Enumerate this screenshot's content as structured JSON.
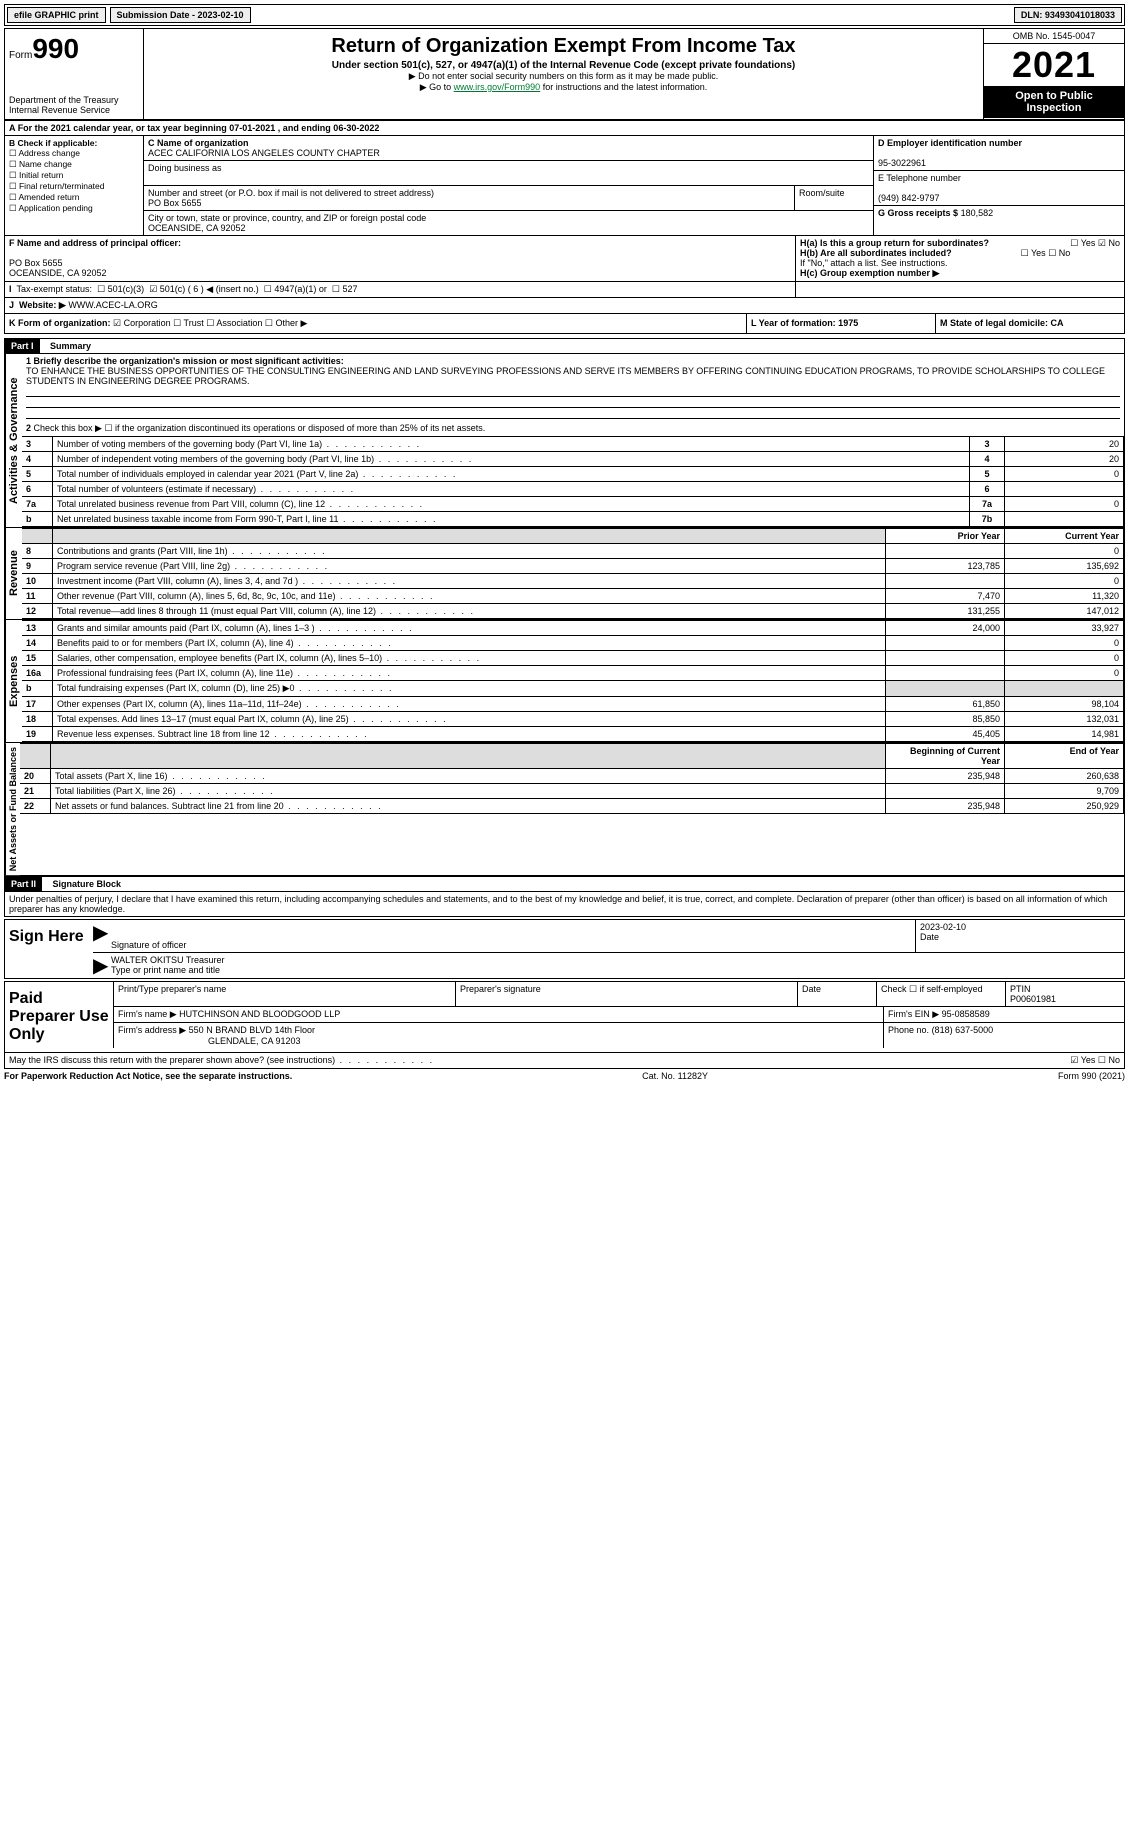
{
  "topbar": {
    "efile": "efile GRAPHIC print",
    "submission_label": "Submission Date - 2023-02-10",
    "dln": "DLN: 93493041018033"
  },
  "header": {
    "form_word": "Form",
    "form_number": "990",
    "title": "Return of Organization Exempt From Income Tax",
    "subtitle": "Under section 501(c), 527, or 4947(a)(1) of the Internal Revenue Code (except private foundations)",
    "warn": "▶ Do not enter social security numbers on this form as it may be made public.",
    "goto_prefix": "▶ Go to ",
    "goto_link": "www.irs.gov/Form990",
    "goto_suffix": " for instructions and the latest information.",
    "dept": "Department of the Treasury",
    "irs": "Internal Revenue Service",
    "omb": "OMB No. 1545-0047",
    "year": "2021",
    "open": "Open to Public Inspection"
  },
  "A": {
    "line": "For the 2021 calendar year, or tax year beginning 07-01-2021   , and ending 06-30-2022"
  },
  "B": {
    "header": "B Check if applicable:",
    "items": [
      "Address change",
      "Name change",
      "Initial return",
      "Final return/terminated",
      "Amended return",
      "Application pending"
    ]
  },
  "C": {
    "name_label": "C Name of organization",
    "name": "ACEC CALIFORNIA LOS ANGELES COUNTY CHAPTER",
    "dba_label": "Doing business as",
    "street_label": "Number and street (or P.O. box if mail is not delivered to street address)",
    "room_label": "Room/suite",
    "street": "PO Box 5655",
    "city_label": "City or town, state or province, country, and ZIP or foreign postal code",
    "city": "OCEANSIDE, CA  92052"
  },
  "D": {
    "label": "D Employer identification number",
    "value": "95-3022961"
  },
  "E": {
    "label": "E Telephone number",
    "value": "(949) 842-9797"
  },
  "G": {
    "label": "G Gross receipts $",
    "value": "180,582"
  },
  "F": {
    "label": "F  Name and address of principal officer:",
    "line1": "PO Box 5655",
    "line2": "OCEANSIDE, CA  92052"
  },
  "H": {
    "a": "H(a)  Is this a group return for subordinates?",
    "b": "H(b)  Are all subordinates included?",
    "b_note": "If \"No,\" attach a list. See instructions.",
    "c": "H(c)  Group exemption number ▶",
    "yes": "Yes",
    "no": "No"
  },
  "I": {
    "label": "Tax-exempt status:",
    "opts": [
      "501(c)(3)",
      "501(c) ( 6 ) ◀ (insert no.)",
      "4947(a)(1) or",
      "527"
    ]
  },
  "J": {
    "label": "Website: ▶",
    "value": "WWW.ACEC-LA.ORG"
  },
  "K": {
    "label": "K Form of organization:",
    "opts": [
      "Corporation",
      "Trust",
      "Association",
      "Other ▶"
    ]
  },
  "L": {
    "label": "L Year of formation: 1975"
  },
  "M": {
    "label": "M State of legal domicile: CA"
  },
  "part1": {
    "label": "Part I",
    "title": "Summary",
    "q1": "1 Briefly describe the organization's mission or most significant activities:",
    "mission": "TO ENHANCE THE BUSINESS OPPORTUNITIES OF THE CONSULTING ENGINEERING AND LAND SURVEYING PROFESSIONS AND SERVE ITS MEMBERS BY OFFERING CONTINUING EDUCATION PROGRAMS, TO PROVIDE SCHOLARSHIPS TO COLLEGE STUDENTS IN ENGINEERING DEGREE PROGRAMS.",
    "q2": "Check this box ▶ ☐ if the organization discontinued its operations or disposed of more than 25% of its net assets.",
    "sidelabel_ag": "Activities & Governance",
    "sidelabel_rev": "Revenue",
    "sidelabel_exp": "Expenses",
    "sidelabel_net": "Net Assets or Fund Balances",
    "col_prior": "Prior Year",
    "col_current": "Current Year",
    "col_begin": "Beginning of Current Year",
    "col_end": "End of Year",
    "rows_governance": [
      {
        "n": "3",
        "desc": "Number of voting members of the governing body (Part VI, line 1a)",
        "box": "3",
        "val": "20"
      },
      {
        "n": "4",
        "desc": "Number of independent voting members of the governing body (Part VI, line 1b)",
        "box": "4",
        "val": "20"
      },
      {
        "n": "5",
        "desc": "Total number of individuals employed in calendar year 2021 (Part V, line 2a)",
        "box": "5",
        "val": "0"
      },
      {
        "n": "6",
        "desc": "Total number of volunteers (estimate if necessary)",
        "box": "6",
        "val": ""
      },
      {
        "n": "7a",
        "desc": "Total unrelated business revenue from Part VIII, column (C), line 12",
        "box": "7a",
        "val": "0"
      },
      {
        "n": "b",
        "desc": "Net unrelated business taxable income from Form 990-T, Part I, line 11",
        "box": "7b",
        "val": ""
      }
    ],
    "rows_revenue": [
      {
        "n": "8",
        "desc": "Contributions and grants (Part VIII, line 1h)",
        "prior": "",
        "curr": "0"
      },
      {
        "n": "9",
        "desc": "Program service revenue (Part VIII, line 2g)",
        "prior": "123,785",
        "curr": "135,692"
      },
      {
        "n": "10",
        "desc": "Investment income (Part VIII, column (A), lines 3, 4, and 7d )",
        "prior": "",
        "curr": "0"
      },
      {
        "n": "11",
        "desc": "Other revenue (Part VIII, column (A), lines 5, 6d, 8c, 9c, 10c, and 11e)",
        "prior": "7,470",
        "curr": "11,320"
      },
      {
        "n": "12",
        "desc": "Total revenue—add lines 8 through 11 (must equal Part VIII, column (A), line 12)",
        "prior": "131,255",
        "curr": "147,012"
      }
    ],
    "rows_expenses": [
      {
        "n": "13",
        "desc": "Grants and similar amounts paid (Part IX, column (A), lines 1–3 )",
        "prior": "24,000",
        "curr": "33,927"
      },
      {
        "n": "14",
        "desc": "Benefits paid to or for members (Part IX, column (A), line 4)",
        "prior": "",
        "curr": "0"
      },
      {
        "n": "15",
        "desc": "Salaries, other compensation, employee benefits (Part IX, column (A), lines 5–10)",
        "prior": "",
        "curr": "0"
      },
      {
        "n": "16a",
        "desc": "Professional fundraising fees (Part IX, column (A), line 11e)",
        "prior": "",
        "curr": "0"
      },
      {
        "n": "b",
        "desc": "Total fundraising expenses (Part IX, column (D), line 25) ▶0",
        "prior": "__shade__",
        "curr": "__shade__"
      },
      {
        "n": "17",
        "desc": "Other expenses (Part IX, column (A), lines 11a–11d, 11f–24e)",
        "prior": "61,850",
        "curr": "98,104"
      },
      {
        "n": "18",
        "desc": "Total expenses. Add lines 13–17 (must equal Part IX, column (A), line 25)",
        "prior": "85,850",
        "curr": "132,031"
      },
      {
        "n": "19",
        "desc": "Revenue less expenses. Subtract line 18 from line 12",
        "prior": "45,405",
        "curr": "14,981"
      }
    ],
    "rows_net": [
      {
        "n": "20",
        "desc": "Total assets (Part X, line 16)",
        "prior": "235,948",
        "curr": "260,638"
      },
      {
        "n": "21",
        "desc": "Total liabilities (Part X, line 26)",
        "prior": "",
        "curr": "9,709"
      },
      {
        "n": "22",
        "desc": "Net assets or fund balances. Subtract line 21 from line 20",
        "prior": "235,948",
        "curr": "250,929"
      }
    ]
  },
  "part2": {
    "label": "Part II",
    "title": "Signature Block",
    "decl": "Under penalties of perjury, I declare that I have examined this return, including accompanying schedules and statements, and to the best of my knowledge and belief, it is true, correct, and complete. Declaration of preparer (other than officer) is based on all information of which preparer has any knowledge."
  },
  "sign": {
    "label": "Sign Here",
    "sig_officer": "Signature of officer",
    "date": "Date",
    "date_val": "2023-02-10",
    "name": "WALTER OKITSU  Treasurer",
    "name_label": "Type or print name and title"
  },
  "paid": {
    "label": "Paid Preparer Use Only",
    "col_name": "Print/Type preparer's name",
    "col_sig": "Preparer's signature",
    "col_date": "Date",
    "col_self": "Check ☐ if self-employed",
    "ptin_label": "PTIN",
    "ptin": "P00601981",
    "firm_name_label": "Firm's name    ▶",
    "firm_name": "HUTCHINSON AND BLOODGOOD LLP",
    "firm_ein_label": "Firm's EIN ▶",
    "firm_ein": "95-0858589",
    "firm_addr_label": "Firm's address ▶",
    "firm_addr1": "550 N BRAND BLVD 14th Floor",
    "firm_addr2": "GLENDALE, CA  91203",
    "phone_label": "Phone no.",
    "phone": "(818) 637-5000"
  },
  "may_discuss": {
    "text": "May the IRS discuss this return with the preparer shown above? (see instructions)",
    "yes": "Yes",
    "no": "No"
  },
  "footer": {
    "left": "For Paperwork Reduction Act Notice, see the separate instructions.",
    "mid": "Cat. No. 11282Y",
    "right": "Form 990 (2021)"
  }
}
